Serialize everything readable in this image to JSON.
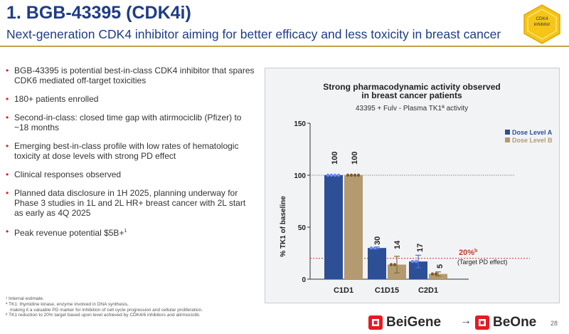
{
  "header": {
    "title": "1. BGB-43395 (CDK4i)",
    "subtitle": "Next-generation CDK4 inhibitor aiming for better efficacy and less toxicity in breast cancer",
    "badge_line1": "CDK4",
    "badge_line2": "inhibitor"
  },
  "bullets": [
    "BGB-43395 is potential best-in-class CDK4 inhibitor that spares CDK6 mediated off-target toxicities",
    "180+ patients enrolled",
    "Second-in-class: closed time gap with atirmociclib (Pfizer) to ~18 months",
    "Emerging best-in-class profile with low rates of hematologic toxicity at dose levels with strong PD effect",
    "Clinical responses observed",
    "Planned data disclosure in 1H 2025, planning underway for Phase 3 studies in 1L and 2L HR+ breast cancer with 2L start as early as 4Q 2025"
  ],
  "last_bullet": {
    "text": "Peak revenue potential $5B+",
    "sup": "1"
  },
  "footnotes": {
    "f1": "¹ Internal estimate.",
    "f2a": "ª TK1: thymidine kinase, enzyme involved in DNA synthesis,",
    "f2b": "making it a valuable PD marker for inhibition of cell cycle progression and cellular proliferation.",
    "f3": "ᵇ TK1 reduction to 20% target based upon level achieved by CDK4/6 inhibitors and atirmociclib."
  },
  "logos": {
    "from": "BeiGene",
    "to": "BeOne",
    "arrow": "→"
  },
  "page_number": "28",
  "colors": {
    "series_a": "#2c4f96",
    "series_b": "#b49a6f",
    "accent_red": "#c0392b",
    "title_blue": "#1f3c88"
  },
  "chart_data": {
    "type": "bar",
    "title_line1": "Strong pharmacodynamic activity observed",
    "title_line2": "in breast cancer patients",
    "subtitle": "43395 + Fulv - Plasma TK1ª activity",
    "ylabel": "% TK1 of baseline",
    "ylim": [
      0,
      150
    ],
    "yticks": [
      0,
      50,
      100,
      150
    ],
    "categories": [
      "C1D1",
      "C1D15",
      "C2D1"
    ],
    "series": [
      {
        "name": "Dose Level A",
        "values": [
          100,
          30,
          17
        ],
        "color": "#2c4f96",
        "errors": [
          0,
          1,
          6
        ]
      },
      {
        "name": "Dose Level B",
        "values": [
          100,
          14,
          5
        ],
        "color": "#b49a6f",
        "errors": [
          0,
          8,
          2
        ]
      }
    ],
    "value_labels": [
      [
        "100",
        "30",
        "17"
      ],
      [
        "100",
        "14",
        "5"
      ]
    ],
    "reference_lines": [
      {
        "value": 100,
        "style": "dotted"
      },
      {
        "value": 20,
        "label": "20%",
        "label_sup": "b",
        "note": "(Target PD effect)"
      }
    ]
  }
}
